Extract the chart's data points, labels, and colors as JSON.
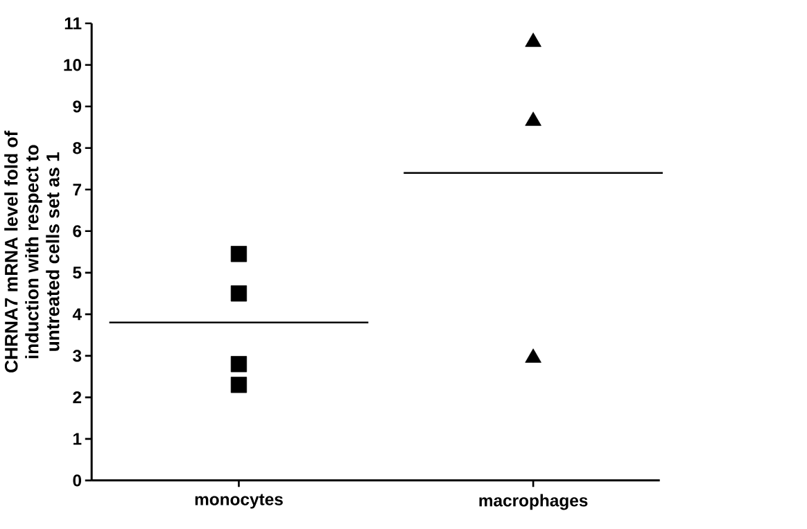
{
  "chart_data": {
    "type": "scatter",
    "ylabel": "CHRNA7 mRNA level fold of induction with respect to untreated cells set as 1",
    "categories": [
      "monocytes",
      "macrophages"
    ],
    "ylim": [
      0,
      11
    ],
    "yticks": [
      0,
      1,
      2,
      3,
      4,
      5,
      6,
      7,
      8,
      9,
      10,
      11
    ],
    "grid": false,
    "series": [
      {
        "marker": "square",
        "color": "#000000",
        "x": [
          "monocytes",
          "monocytes",
          "monocytes",
          "monocytes"
        ],
        "values": [
          5.45,
          4.5,
          2.8,
          2.3
        ]
      },
      {
        "marker": "triangle",
        "color": "#000000",
        "x": [
          "macrophages",
          "macrophages",
          "macrophages"
        ],
        "values": [
          10.55,
          8.65,
          2.95
        ]
      }
    ],
    "ref_lines": [
      {
        "axis": "y",
        "value": 3.8,
        "color": "#000000"
      },
      {
        "axis": "y",
        "value": 7.4,
        "color": "#000000"
      }
    ]
  }
}
